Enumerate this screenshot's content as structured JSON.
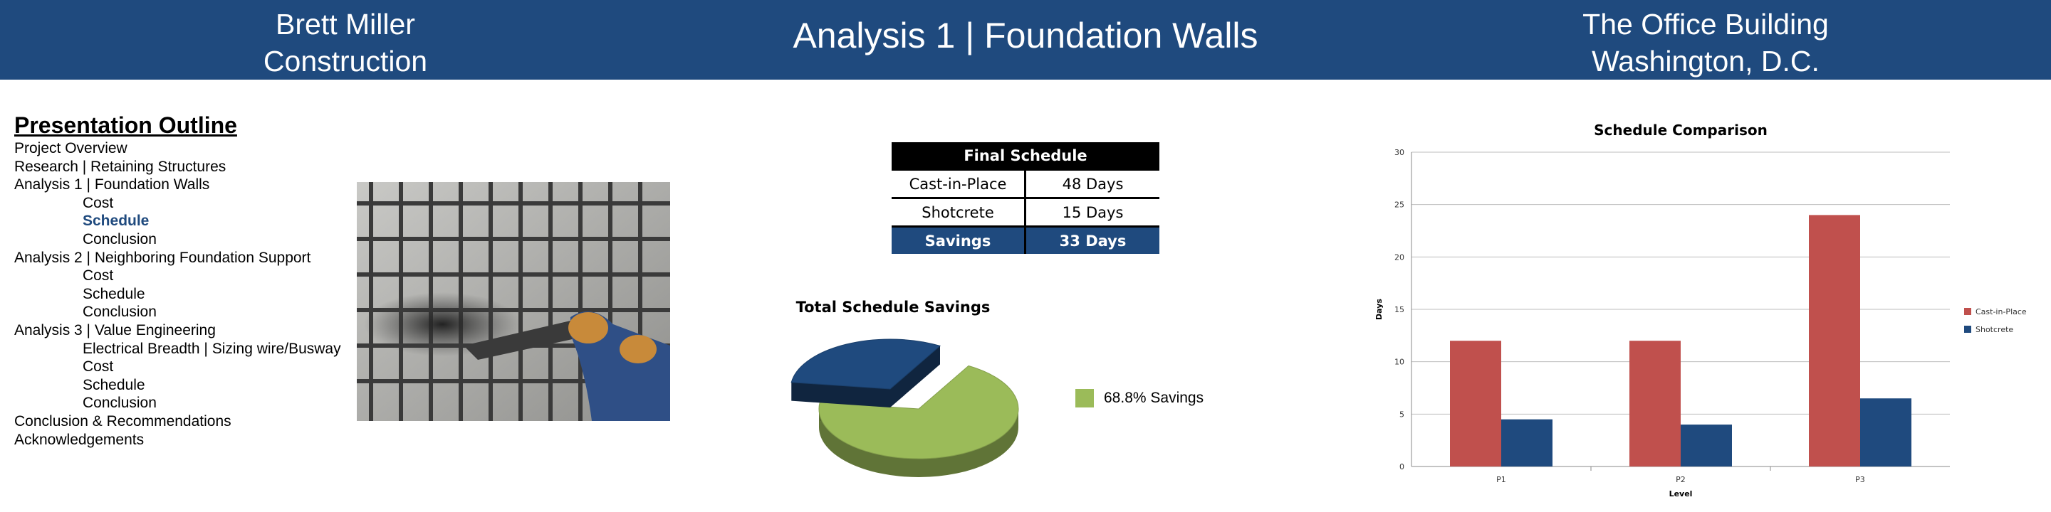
{
  "header": {
    "left_line1": "Brett Miller",
    "left_line2": "Construction",
    "center": "Analysis 1 | Foundation Walls",
    "right_line1": "The Office Building",
    "right_line2": "Washington, D.C."
  },
  "outline": {
    "title": "Presentation Outline",
    "items": [
      {
        "text": "Project Overview",
        "level": 0
      },
      {
        "text": "Research | Retaining Structures",
        "level": 0
      },
      {
        "text": "Analysis 1 | Foundation Walls",
        "level": 0
      },
      {
        "text": "Cost",
        "level": 1
      },
      {
        "text": "Schedule",
        "level": 1,
        "active": true
      },
      {
        "text": "Conclusion",
        "level": 1
      },
      {
        "text": "Analysis 2 | Neighboring Foundation Support",
        "level": 0
      },
      {
        "text": "Cost",
        "level": 1
      },
      {
        "text": "Schedule",
        "level": 1
      },
      {
        "text": "Conclusion",
        "level": 1
      },
      {
        "text": "Analysis 3 | Value Engineering",
        "level": 0
      },
      {
        "text": "Electrical Breadth | Sizing wire/Busway",
        "level": 1
      },
      {
        "text": "Cost",
        "level": 1
      },
      {
        "text": "Schedule",
        "level": 1
      },
      {
        "text": "Conclusion",
        "level": 1
      },
      {
        "text": "Conclusion & Recommendations",
        "level": 0
      },
      {
        "text": "Acknowledgements",
        "level": 0
      }
    ]
  },
  "schedule_table": {
    "title": "Final Schedule",
    "rows": [
      {
        "method": "Cast-in-Place",
        "days": "48 Days"
      },
      {
        "method": "Shotcrete",
        "days": "15 Days"
      },
      {
        "method": "Savings",
        "days": "33 Days"
      }
    ]
  },
  "colors": {
    "header_bg": "#1f4a7e",
    "cast_in_place": "#c0504d",
    "shotcrete": "#1f4a7e",
    "savings_green": "#9bbb59"
  },
  "chart_data": [
    {
      "type": "pie",
      "title": "Total Schedule Savings",
      "slices": [
        {
          "name": "68.8% Savings",
          "value": 68.8,
          "color": "#9bbb59"
        },
        {
          "name": "",
          "value": 31.2,
          "color": "#1f4a7e"
        }
      ],
      "legend": "right"
    },
    {
      "type": "bar",
      "title": "Schedule Comparison",
      "xlabel": "Level",
      "ylabel": "Days",
      "categories": [
        "P1",
        "P2",
        "P3"
      ],
      "series": [
        {
          "name": "Cast-in-Place",
          "values": [
            12,
            12,
            24
          ],
          "color": "#c0504d"
        },
        {
          "name": "Shotcrete",
          "values": [
            4.5,
            4,
            6.5
          ],
          "color": "#1f4a7e"
        }
      ],
      "ylim": [
        0,
        30
      ],
      "yticks": [
        0,
        5,
        10,
        15,
        20,
        25,
        30
      ],
      "grid": true,
      "legend": "right"
    }
  ]
}
